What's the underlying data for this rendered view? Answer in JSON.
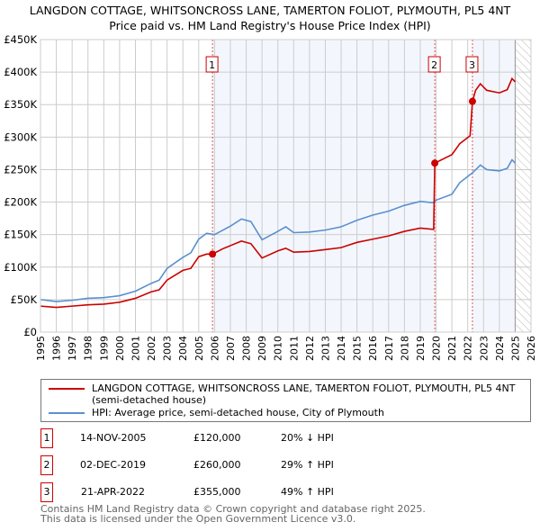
{
  "chart_data": {
    "type": "line",
    "title": "LANGDON COTTAGE, WHITSONCROSS LANE, TAMERTON FOLIOT, PLYMOUTH, PL5 4NT",
    "subtitle": "Price paid vs. HM Land Registry's House Price Index (HPI)",
    "xlim": [
      1995,
      2026
    ],
    "ylim": [
      0,
      450000
    ],
    "x_ticks": [
      "1995",
      "1996",
      "1997",
      "1998",
      "1999",
      "2000",
      "2001",
      "2002",
      "2003",
      "2004",
      "2005",
      "2006",
      "2007",
      "2008",
      "2009",
      "2010",
      "2011",
      "2012",
      "2013",
      "2014",
      "2015",
      "2016",
      "2017",
      "2018",
      "2019",
      "2020",
      "2021",
      "2022",
      "2023",
      "2024",
      "2025",
      "2026"
    ],
    "y_ticks": [
      {
        "v": 0,
        "l": "£0"
      },
      {
        "v": 50000,
        "l": "£50K"
      },
      {
        "v": 100000,
        "l": "£100K"
      },
      {
        "v": 150000,
        "l": "£150K"
      },
      {
        "v": 200000,
        "l": "£200K"
      },
      {
        "v": 250000,
        "l": "£250K"
      },
      {
        "v": 300000,
        "l": "£300K"
      },
      {
        "v": 350000,
        "l": "£350K"
      },
      {
        "v": 400000,
        "l": "£400K"
      },
      {
        "v": 450000,
        "l": "£450K"
      }
    ],
    "grid": true,
    "series": [
      {
        "name": "LANGDON COTTAGE, WHITSONCROSS LANE, TAMERTON FOLIOT, PLYMOUTH, PL5 4NT (semi-detached house)",
        "color": "#cc0000",
        "points": [
          [
            1995,
            40000
          ],
          [
            1996,
            38000
          ],
          [
            1997,
            40000
          ],
          [
            1998,
            42000
          ],
          [
            1999,
            43000
          ],
          [
            2000,
            46000
          ],
          [
            2001,
            52000
          ],
          [
            2002,
            62000
          ],
          [
            2002.5,
            65000
          ],
          [
            2003,
            80000
          ],
          [
            2004,
            95000
          ],
          [
            2004.5,
            98000
          ],
          [
            2005,
            116000
          ],
          [
            2005.5,
            120000
          ],
          [
            2005.87,
            120000
          ],
          [
            2006.5,
            128000
          ],
          [
            2007,
            133000
          ],
          [
            2007.7,
            140000
          ],
          [
            2008.3,
            136000
          ],
          [
            2009,
            114000
          ],
          [
            2010,
            125000
          ],
          [
            2010.5,
            129000
          ],
          [
            2011,
            123000
          ],
          [
            2012,
            124000
          ],
          [
            2013,
            127000
          ],
          [
            2014,
            130000
          ],
          [
            2015,
            138000
          ],
          [
            2016,
            143000
          ],
          [
            2017,
            148000
          ],
          [
            2018,
            155000
          ],
          [
            2019,
            160000
          ],
          [
            2019.85,
            158000
          ],
          [
            2019.92,
            260000
          ],
          [
            2020.5,
            267000
          ],
          [
            2021,
            273000
          ],
          [
            2021.5,
            290000
          ],
          [
            2022.15,
            302000
          ],
          [
            2022.3,
            355000
          ],
          [
            2022.5,
            372000
          ],
          [
            2022.8,
            382000
          ],
          [
            2023.2,
            372000
          ],
          [
            2024,
            368000
          ],
          [
            2024.5,
            373000
          ],
          [
            2024.8,
            390000
          ],
          [
            2025,
            385000
          ]
        ]
      },
      {
        "name": "HPI: Average price, semi-detached house, City of Plymouth",
        "color": "#5b8fd0",
        "points": [
          [
            1995,
            50000
          ],
          [
            1996,
            47000
          ],
          [
            1997,
            49000
          ],
          [
            1998,
            52000
          ],
          [
            1999,
            53000
          ],
          [
            2000,
            56000
          ],
          [
            2001,
            63000
          ],
          [
            2002,
            75000
          ],
          [
            2002.5,
            80000
          ],
          [
            2003,
            98000
          ],
          [
            2004,
            115000
          ],
          [
            2004.5,
            122000
          ],
          [
            2005,
            143000
          ],
          [
            2005.5,
            152000
          ],
          [
            2006,
            150000
          ],
          [
            2007,
            163000
          ],
          [
            2007.7,
            174000
          ],
          [
            2008.3,
            170000
          ],
          [
            2009,
            142000
          ],
          [
            2010,
            155000
          ],
          [
            2010.5,
            162000
          ],
          [
            2011,
            153000
          ],
          [
            2012,
            154000
          ],
          [
            2013,
            157000
          ],
          [
            2014,
            162000
          ],
          [
            2015,
            172000
          ],
          [
            2016,
            180000
          ],
          [
            2017,
            186000
          ],
          [
            2018,
            195000
          ],
          [
            2019,
            201000
          ],
          [
            2019.85,
            199000
          ],
          [
            2020,
            203000
          ],
          [
            2021,
            212000
          ],
          [
            2021.5,
            230000
          ],
          [
            2022.3,
            245000
          ],
          [
            2022.8,
            257000
          ],
          [
            2023.2,
            250000
          ],
          [
            2024,
            248000
          ],
          [
            2024.5,
            252000
          ],
          [
            2024.8,
            265000
          ],
          [
            2025,
            260000
          ]
        ]
      }
    ],
    "sales": [
      {
        "id": "1",
        "x": 2005.87,
        "value": 120000
      },
      {
        "id": "2",
        "x": 2019.92,
        "value": 260000
      },
      {
        "id": "3",
        "x": 2022.3,
        "value": 355000
      }
    ],
    "forecast_start": 2025.0
  },
  "legend": {
    "red": "LANGDON COTTAGE, WHITSONCROSS LANE, TAMERTON FOLIOT, PLYMOUTH, PL5 4NT (semi-detached house)",
    "blue": "HPI: Average price, semi-detached house, City of Plymouth"
  },
  "table": [
    {
      "id": "1",
      "date": "14-NOV-2005",
      "price": "£120,000",
      "hpi": "20% ↓ HPI"
    },
    {
      "id": "2",
      "date": "02-DEC-2019",
      "price": "£260,000",
      "hpi": "29% ↑ HPI"
    },
    {
      "id": "3",
      "date": "21-APR-2022",
      "price": "£355,000",
      "hpi": "49% ↑ HPI"
    }
  ],
  "footer": {
    "line1": "Contains HM Land Registry data © Crown copyright and database right 2025.",
    "line2": "This data is licensed under the Open Government Licence v3.0."
  }
}
